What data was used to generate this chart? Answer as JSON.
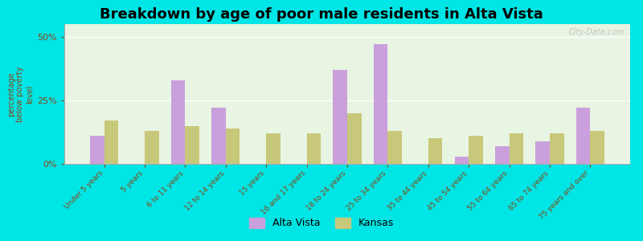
{
  "title": "Breakdown by age of poor male residents in Alta Vista",
  "ylabel": "percentage\nbelow poverty\nlevel",
  "categories": [
    "Under 5 years",
    "5 years",
    "6 to 11 years",
    "12 to 14 years",
    "15 years",
    "16 and 17 years",
    "18 to 24 years",
    "25 to 34 years",
    "35 to 44 years",
    "45 to 54 years",
    "55 to 64 years",
    "65 to 74 years",
    "75 years and over"
  ],
  "alta_vista": [
    11,
    0,
    33,
    22,
    0,
    0,
    37,
    47,
    0,
    3,
    7,
    9,
    22
  ],
  "kansas": [
    17,
    13,
    15,
    14,
    12,
    12,
    20,
    13,
    10,
    11,
    12,
    12,
    13
  ],
  "alta_vista_color": "#c9a0dc",
  "kansas_color": "#c8c87a",
  "background_color": "#e8f5e2",
  "outer_background": "#00e5e5",
  "title_fontsize": 13,
  "ytick_labels": [
    "0%",
    "25%",
    "50%"
  ],
  "ytick_values": [
    0,
    25,
    50
  ],
  "ylim": [
    0,
    55
  ],
  "bar_width": 0.35,
  "watermark": "City-Data.com",
  "tick_color": "#8B4513",
  "label_color": "#8B4513"
}
